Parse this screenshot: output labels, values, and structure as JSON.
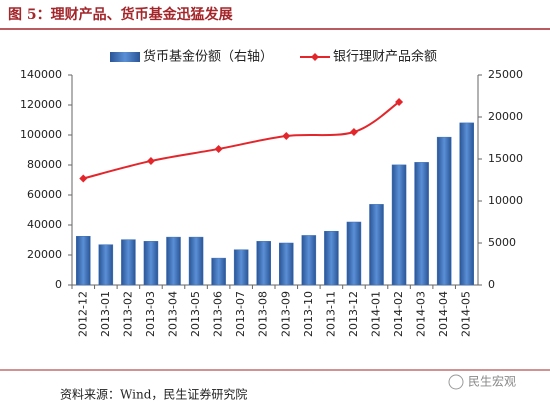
{
  "chart_data": {
    "type": "bar-line",
    "title": "图 5：理财产品、货币基金迅猛发展",
    "categories": [
      "2012-12",
      "2013-01",
      "2013-02",
      "2013-03",
      "2013-04",
      "2013-05",
      "2013-06",
      "2013-07",
      "2013-08",
      "2013-09",
      "2013-10",
      "2013-11",
      "2013-12",
      "2014-01",
      "2014-02",
      "2014-03",
      "2014-04",
      "2014-05"
    ],
    "series": [
      {
        "name": "货币基金份额（右轴）",
        "type": "bar",
        "axis": "y2",
        "color": "#3b6db3",
        "values": [
          5800,
          4800,
          5400,
          5200,
          5700,
          5700,
          3200,
          4200,
          5200,
          5000,
          5900,
          6400,
          7500,
          9600,
          14300,
          14600,
          17600,
          19300
        ]
      },
      {
        "name": "银行理财产品余额",
        "type": "line",
        "color": "#e3262b",
        "x": [
          "2012-12",
          "2013-03",
          "2013-06",
          "2013-09",
          "2013-12",
          "2014-02"
        ],
        "values": [
          71000,
          82700,
          90700,
          99300,
          102000,
          122000
        ]
      }
    ],
    "ylim": [
      0,
      140000
    ],
    "yticks": [
      0,
      20000,
      40000,
      60000,
      80000,
      100000,
      120000,
      140000
    ],
    "y2lim": [
      0,
      25000
    ],
    "y2ticks": [
      0,
      5000,
      10000,
      15000,
      20000,
      25000
    ]
  },
  "source": "资料来源：Wind，民生证券研究院",
  "watermark": "民生宏观"
}
